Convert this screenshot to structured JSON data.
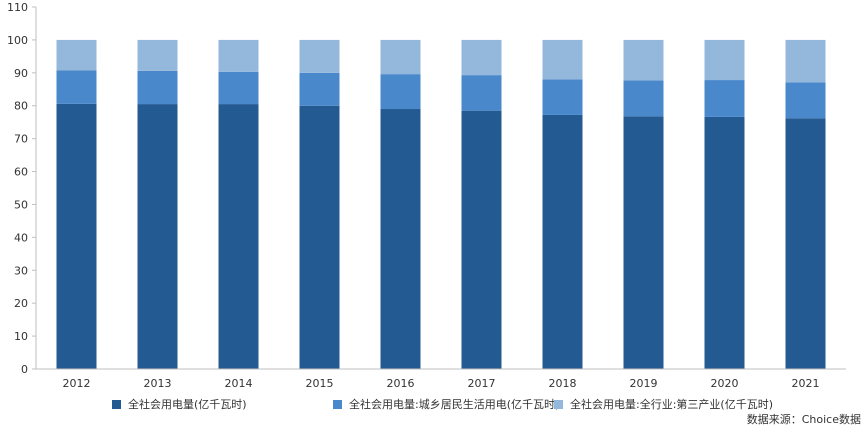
{
  "chart_data": {
    "type": "bar",
    "stacked": true,
    "categories": [
      "2012",
      "2013",
      "2014",
      "2015",
      "2016",
      "2017",
      "2018",
      "2019",
      "2020",
      "2021"
    ],
    "series": [
      {
        "name": "全社会用电量(亿千瓦时)",
        "color": "#245a92",
        "values": [
          80.6,
          80.5,
          80.5,
          80.0,
          79.0,
          78.5,
          77.2,
          76.8,
          76.6,
          76.2
        ]
      },
      {
        "name": "全社会用电量:城乡居民生活用电(亿千瓦时)",
        "color": "#4a88cc",
        "values": [
          10.1,
          10.1,
          9.8,
          10.0,
          10.6,
          10.8,
          10.8,
          10.9,
          11.2,
          10.9
        ]
      },
      {
        "name": "全社会用电量:全行业:第三产业(亿千瓦时)",
        "color": "#94b7dc",
        "values": [
          9.3,
          9.4,
          9.7,
          10.0,
          10.4,
          10.7,
          12.0,
          12.3,
          12.2,
          12.9
        ]
      }
    ],
    "ylim": [
      0,
      110
    ],
    "yticks": [
      0,
      10,
      20,
      30,
      40,
      50,
      60,
      70,
      80,
      90,
      100,
      110
    ],
    "grid": false,
    "legend_position": "bottom"
  },
  "source_text": "数据来源：Choice数据"
}
